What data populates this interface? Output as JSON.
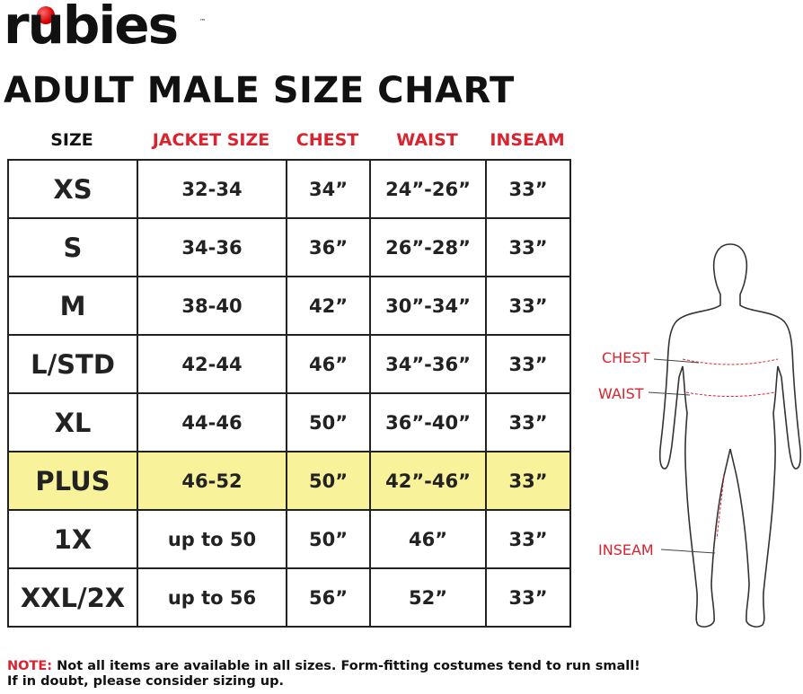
{
  "logo": {
    "text": "rubies",
    "mark": "™"
  },
  "title": "ADULT MALE SIZE CHART",
  "table": {
    "headers": [
      "SIZE",
      "JACKET SIZE",
      "CHEST",
      "WAIST",
      "INSEAM"
    ],
    "rows": [
      [
        "XS",
        "32-34",
        "34”",
        "24”-26”",
        "33”"
      ],
      [
        "S",
        "34-36",
        "36”",
        "26”-28”",
        "33”"
      ],
      [
        "M",
        "38-40",
        "42”",
        "30”-34”",
        "33”"
      ],
      [
        "L/STD",
        "42-44",
        "46”",
        "34”-36”",
        "33”"
      ],
      [
        "XL",
        "44-46",
        "50”",
        "36”-40”",
        "33”"
      ],
      [
        "PLUS",
        "46-52",
        "50”",
        "42”-46”",
        "33”"
      ],
      [
        "1X",
        "up to 50",
        "50”",
        "46”",
        "33”"
      ],
      [
        "XXL/2X",
        "up to 56",
        "56”",
        "52”",
        "33”"
      ]
    ]
  },
  "note": {
    "label": "NOTE:",
    "lines": [
      "Not all items are available in all sizes. Form-fitting costumes tend to run small!",
      "If in doubt, please consider sizing up."
    ]
  },
  "figure": {
    "labels": [
      "CHEST",
      "WAIST",
      "INSEAM"
    ]
  }
}
